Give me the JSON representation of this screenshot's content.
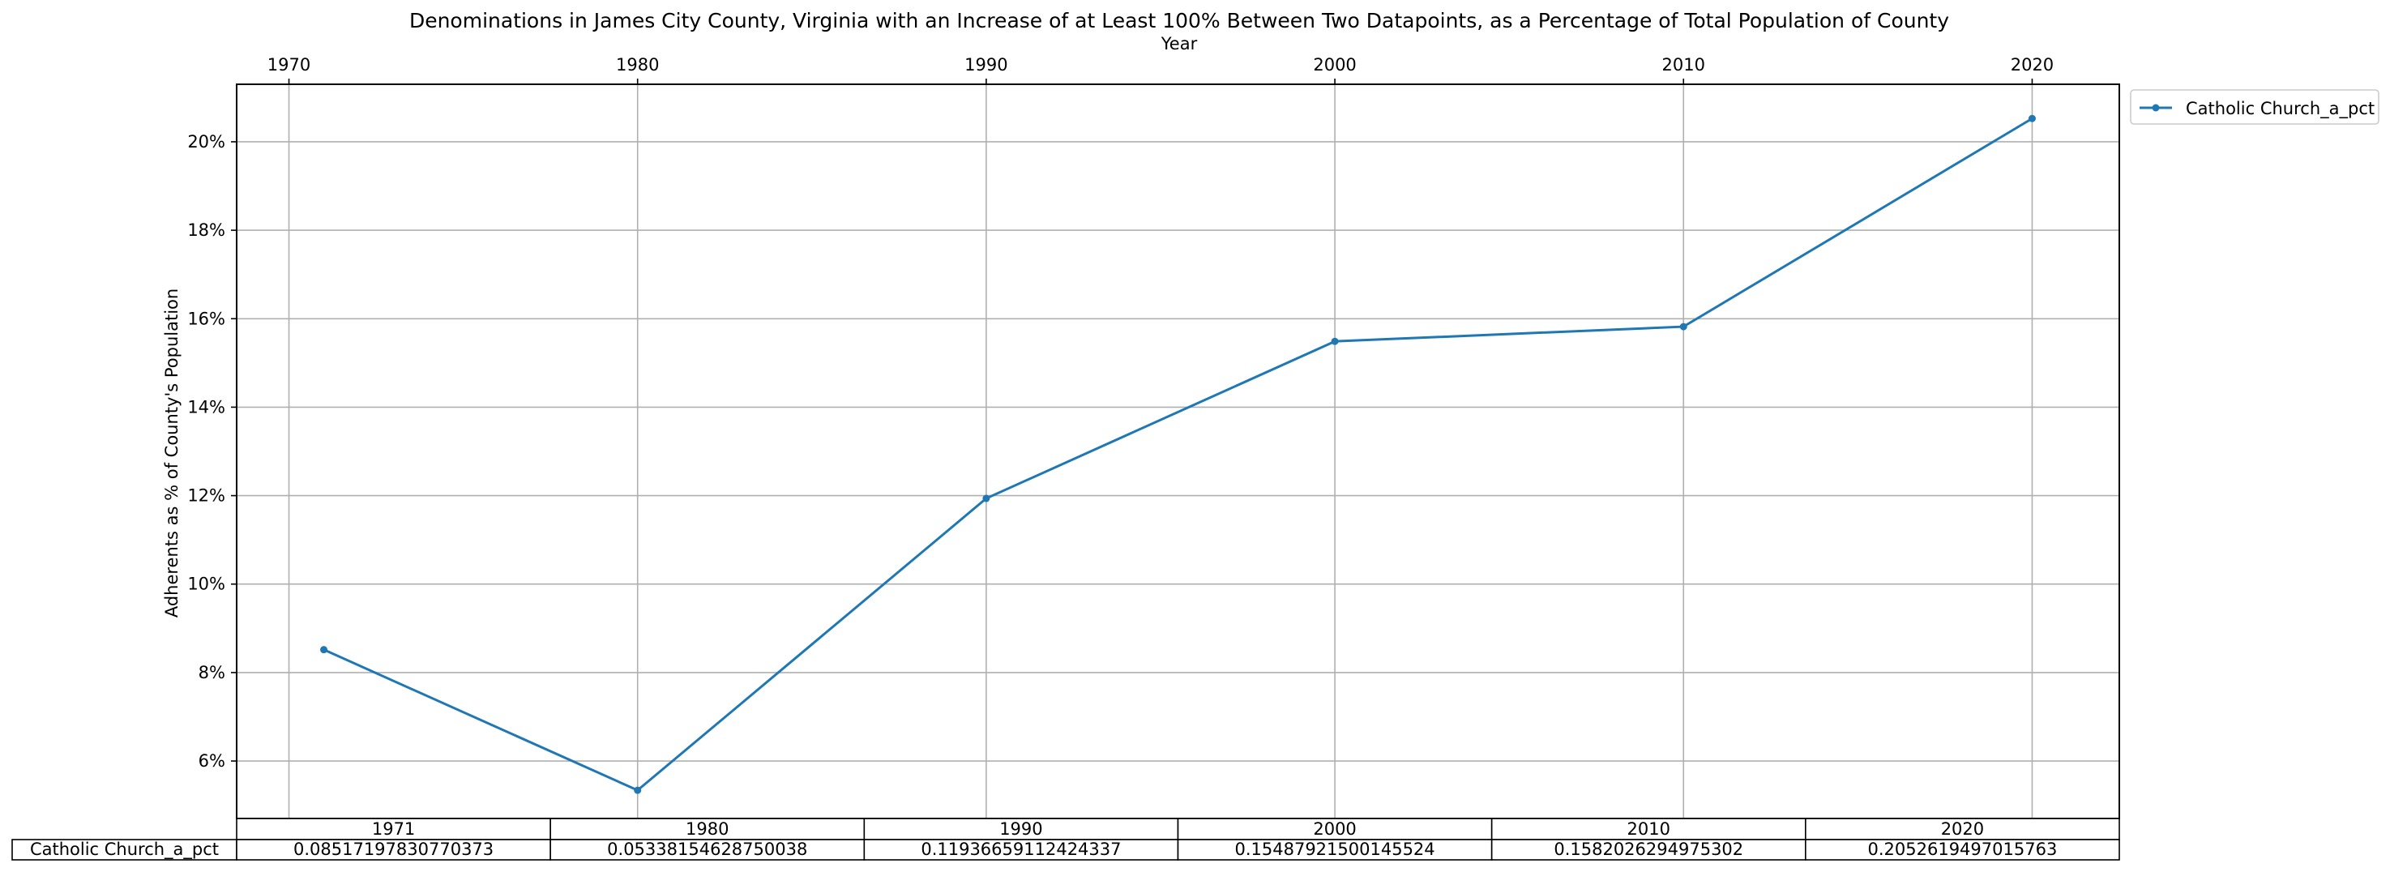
{
  "chart_data": {
    "type": "line",
    "title": "Denominations in James City County, Virginia with an Increase of at Least 100% Between Two Datapoints, as a Percentage of Total Population of County",
    "xlabel": "Year",
    "ylabel": "Adherents as % of County's Population",
    "x_ticks": [
      "1970",
      "1980",
      "1990",
      "2000",
      "2010",
      "2020"
    ],
    "y_ticks": [
      "6%",
      "8%",
      "10%",
      "12%",
      "14%",
      "16%",
      "18%",
      "20%"
    ],
    "xlim": [
      1968.5,
      2022.5
    ],
    "ylim": [
      0.047,
      0.213
    ],
    "grid": true,
    "legend_position": "outside top-right",
    "series": [
      {
        "name": "Catholic Church_a_pct",
        "color": "#1f77b4",
        "x": [
          1971,
          1980,
          1990,
          2000,
          2010,
          2020
        ],
        "values": [
          0.08517197830770373,
          0.05338154628750038,
          0.11936659112424337,
          0.15487921500145524,
          0.1582026294975302,
          0.2052619497015763
        ]
      }
    ],
    "table": {
      "column_headers": [
        "1971",
        "1980",
        "1990",
        "2000",
        "2010",
        "2020"
      ],
      "row_label": "Catholic Church_a_pct",
      "cells": [
        "0.08517197830770373",
        "0.05338154628750038",
        "0.11936659112424337",
        "0.15487921500145524",
        "0.1582026294975302",
        "0.2052619497015763"
      ]
    }
  }
}
